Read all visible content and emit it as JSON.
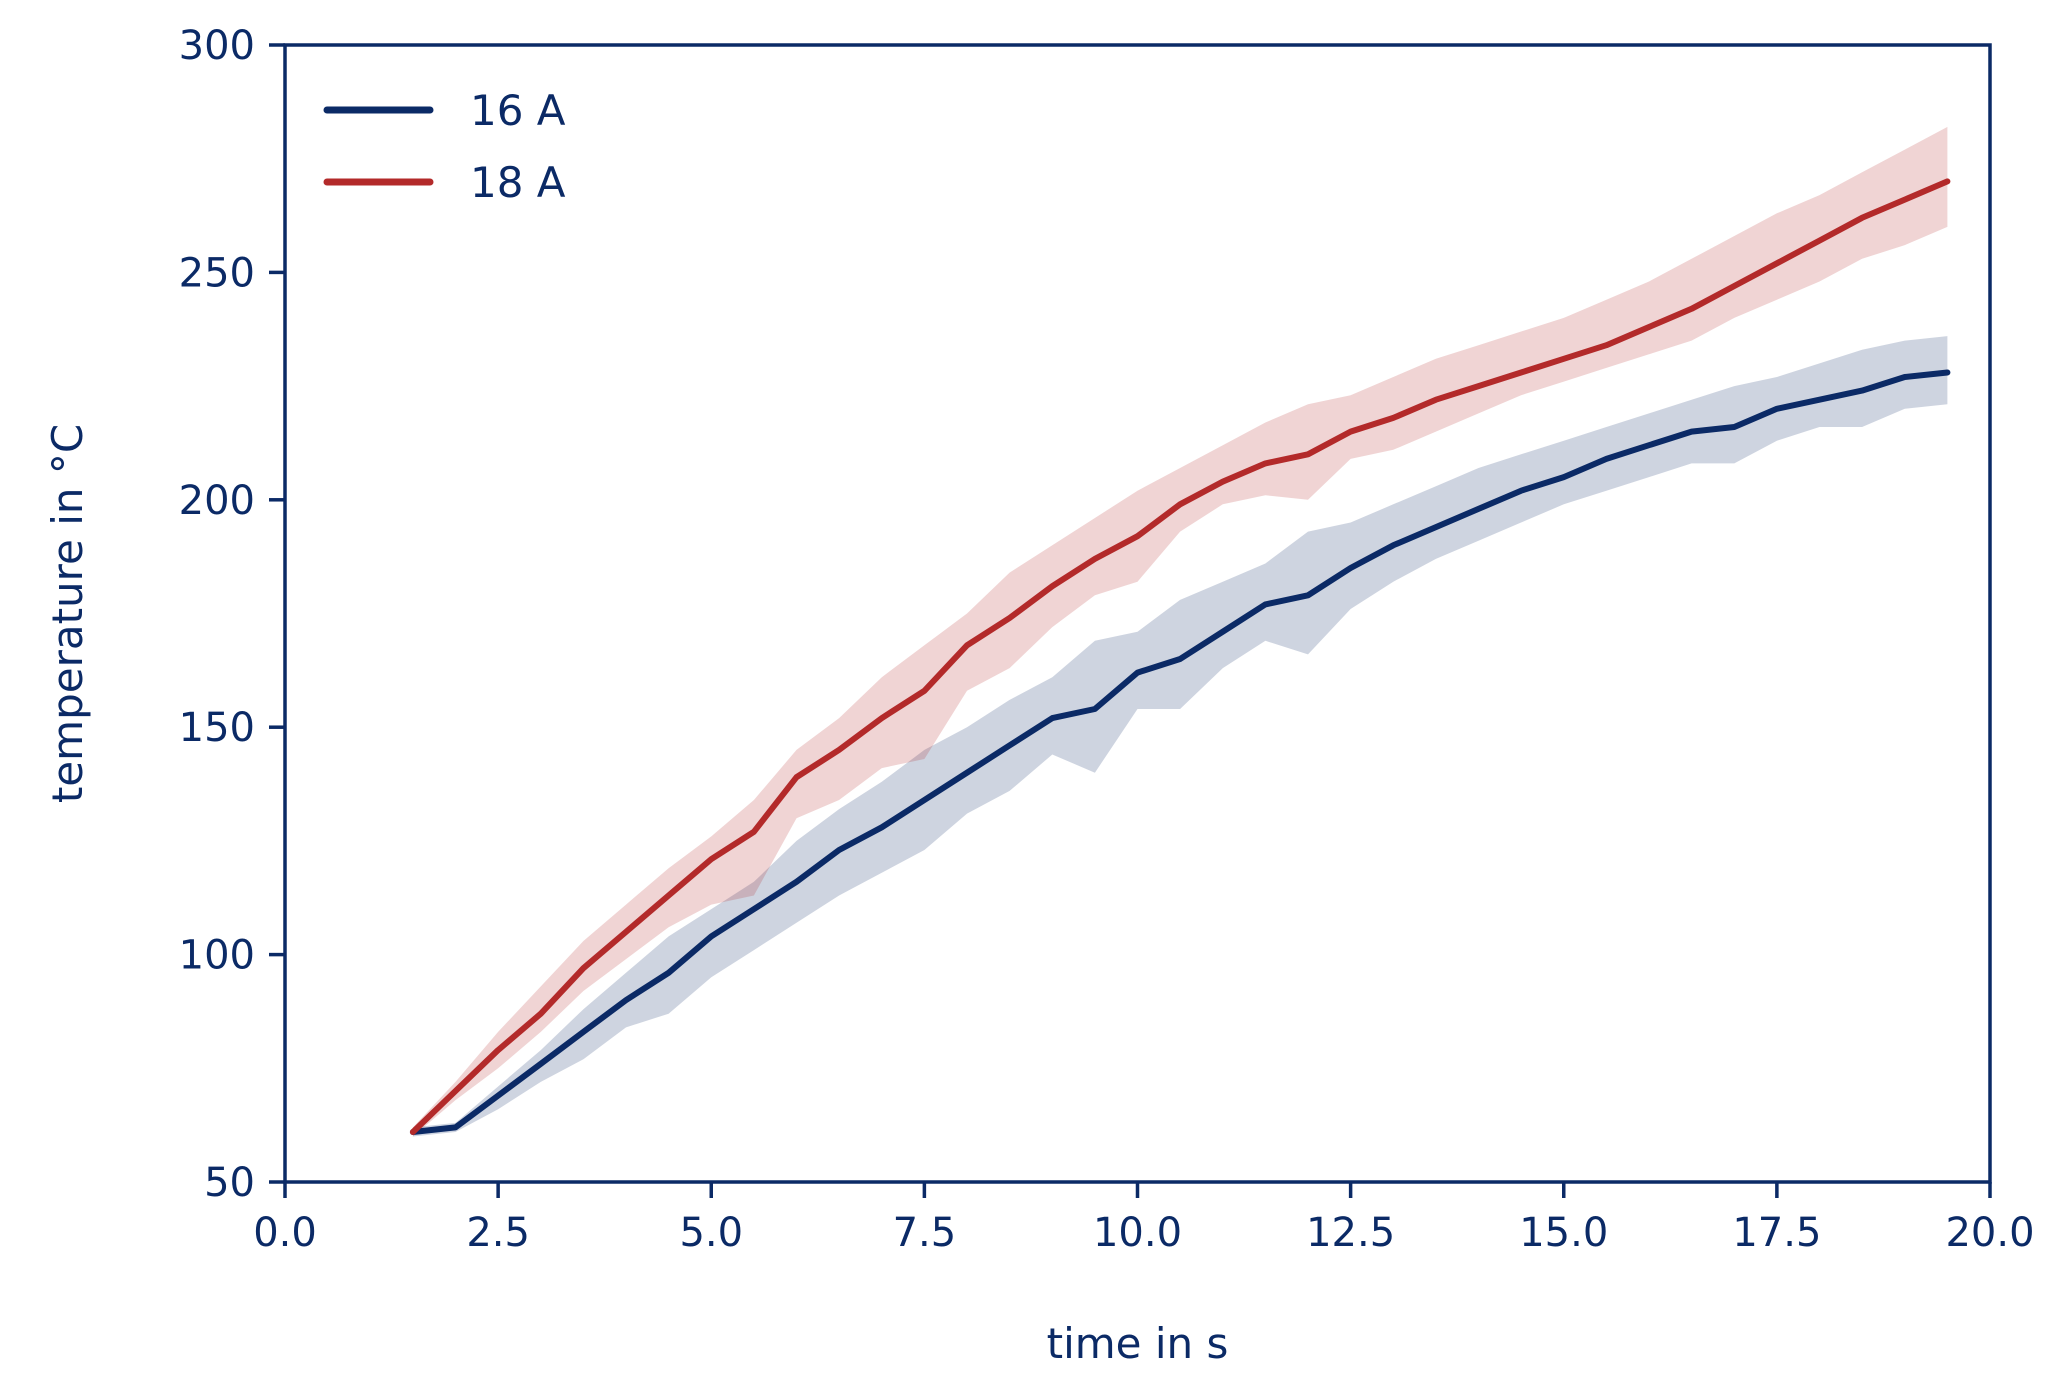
{
  "colors": {
    "axis": "#0b2a66",
    "series_16A": "#0b2a66",
    "series_18A": "#b32a2a"
  },
  "chart_data": {
    "type": "line",
    "xlabel": "time in s",
    "ylabel": "temperature in °C",
    "xlim": [
      0,
      20
    ],
    "ylim": [
      50,
      300
    ],
    "xticks": [
      "0.0",
      "2.5",
      "5.0",
      "7.5",
      "10.0",
      "12.5",
      "15.0",
      "17.5",
      "20.0"
    ],
    "xtick_values": [
      0,
      2.5,
      5,
      7.5,
      10,
      12.5,
      15,
      17.5,
      20
    ],
    "yticks": [
      "50",
      "100",
      "150",
      "200",
      "250",
      "300"
    ],
    "ytick_values": [
      50,
      100,
      150,
      200,
      250,
      300
    ],
    "legend_position": "upper-left",
    "x": [
      1.5,
      2.0,
      2.5,
      3.0,
      3.5,
      4.0,
      4.5,
      5.0,
      5.5,
      6.0,
      6.5,
      7.0,
      7.5,
      8.0,
      8.5,
      9.0,
      9.5,
      10.0,
      10.5,
      11.0,
      11.5,
      12.0,
      12.5,
      13.0,
      13.5,
      14.0,
      14.5,
      15.0,
      15.5,
      16.0,
      16.5,
      17.0,
      17.5,
      18.0,
      18.5,
      19.0,
      19.5
    ],
    "series": [
      {
        "name": "16 A",
        "color": "#0b2a66",
        "values": [
          61,
          62,
          69,
          76,
          83,
          90,
          96,
          104,
          110,
          116,
          123,
          128,
          134,
          140,
          146,
          152,
          154,
          162,
          165,
          171,
          177,
          179,
          185,
          190,
          194,
          198,
          202,
          205,
          209,
          212,
          215,
          216,
          220,
          222,
          224,
          227,
          228
        ],
        "lower": [
          60,
          61,
          66,
          72,
          77,
          84,
          87,
          95,
          101,
          107,
          113,
          118,
          123,
          131,
          136,
          144,
          140,
          154,
          154,
          163,
          169,
          166,
          176,
          182,
          187,
          191,
          195,
          199,
          202,
          205,
          208,
          208,
          213,
          216,
          216,
          220,
          221
        ],
        "upper": [
          62,
          63,
          71,
          79,
          88,
          96,
          104,
          110,
          116,
          125,
          132,
          138,
          145,
          150,
          156,
          161,
          169,
          171,
          178,
          182,
          186,
          193,
          195,
          199,
          203,
          207,
          210,
          213,
          216,
          219,
          222,
          225,
          227,
          230,
          233,
          235,
          236
        ]
      },
      {
        "name": "18 A",
        "color": "#b32a2a",
        "values": [
          61,
          70,
          79,
          87,
          97,
          105,
          113,
          121,
          127,
          139,
          145,
          152,
          158,
          168,
          174,
          181,
          187,
          192,
          199,
          204,
          208,
          210,
          215,
          218,
          222,
          225,
          228,
          231,
          234,
          238,
          242,
          247,
          252,
          257,
          262,
          266,
          270
        ],
        "lower": [
          60,
          68,
          75,
          83,
          92,
          99,
          106,
          111,
          113,
          130,
          134,
          141,
          143,
          158,
          163,
          172,
          179,
          182,
          193,
          199,
          201,
          200,
          209,
          211,
          215,
          219,
          223,
          226,
          229,
          232,
          235,
          240,
          244,
          248,
          253,
          256,
          260
        ],
        "upper": [
          62,
          72,
          83,
          93,
          103,
          111,
          119,
          126,
          134,
          145,
          152,
          161,
          168,
          175,
          184,
          190,
          196,
          202,
          207,
          212,
          217,
          221,
          223,
          227,
          231,
          234,
          237,
          240,
          244,
          248,
          253,
          258,
          263,
          267,
          272,
          277,
          282
        ]
      }
    ]
  }
}
